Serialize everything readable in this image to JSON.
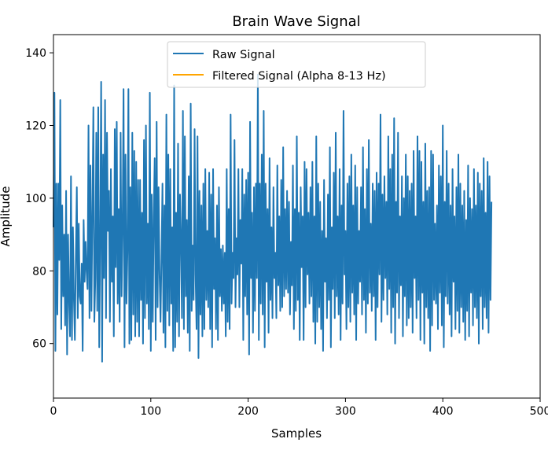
{
  "chart_data": {
    "type": "line",
    "title": "Brain Wave Signal",
    "xlabel": "Samples",
    "ylabel": "Amplitude",
    "xlim": [
      0,
      500
    ],
    "ylim": [
      45,
      145
    ],
    "xticks": [
      0,
      100,
      200,
      300,
      400,
      500
    ],
    "yticks": [
      60,
      80,
      100,
      120,
      140
    ],
    "grid": false,
    "legend_position": "upper center",
    "series": [
      {
        "name": "Raw Signal",
        "color": "#1f77b4",
        "x_start": 0,
        "x_step": 1,
        "values": [
          92,
          129,
          58,
          104,
          68,
          104,
          83,
          127,
          64,
          98,
          73,
          90,
          65,
          102,
          57,
          90,
          72,
          62,
          106,
          61,
          92,
          72,
          61,
          84,
          103,
          67,
          93,
          73,
          71,
          82,
          58,
          94,
          77,
          88,
          80,
          75,
          120,
          67,
          109,
          69,
          96,
          125,
          66,
          78,
          118,
          69,
          125,
          59,
          87,
          132,
          55,
          112,
          78,
          127,
          67,
          118,
          91,
          102,
          66,
          108,
          77,
          95,
          62,
          119,
          81,
          121,
          71,
          97,
          66,
          118,
          73,
          91,
          130,
          59,
          112,
          71,
          85,
          130,
          60,
          103,
          61,
          118,
          68,
          113,
          62,
          110,
          66,
          105,
          62,
          105,
          72,
          96,
          60,
          116,
          67,
          120,
          71,
          93,
          64,
          129,
          58,
          101,
          66,
          95,
          111,
          61,
          121,
          70,
          103,
          79,
          66,
          84,
          104,
          63,
          98,
          59,
          123,
          69,
          112,
          65,
          108,
          71,
          92,
          58,
          131,
          59,
          96,
          66,
          115,
          62,
          101,
          89,
          67,
          124,
          64,
          117,
          73,
          94,
          63,
          106,
          58,
          126,
          69,
          87,
          72,
          119,
          79,
          64,
          117,
          56,
          102,
          68,
          98,
          62,
          104,
          64,
          108,
          72,
          91,
          70,
          107,
          64,
          101,
          59,
          108,
          75,
          89,
          64,
          98,
          61,
          103,
          73,
          86,
          69,
          87,
          71,
          85,
          62,
          108,
          66,
          97,
          64,
          123,
          71,
          85,
          78,
          116,
          70,
          89,
          79,
          108,
          70,
          94,
          82,
          108,
          61,
          101,
          73,
          105,
          68,
          107,
          57,
          121,
          78,
          96,
          63,
          103,
          69,
          104,
          78,
          134,
          61,
          104,
          71,
          112,
          68,
          124,
          59,
          104,
          77,
          97,
          63,
          111,
          72,
          92,
          67,
          103,
          78,
          85,
          67,
          109,
          76,
          95,
          69,
          105,
          70,
          114,
          73,
          97,
          75,
          102,
          74,
          99,
          68,
          88,
          76,
          109,
          64,
          97,
          69,
          117,
          72,
          96,
          61,
          103,
          81,
          95,
          61,
          110,
          70,
          108,
          79,
          96,
          71,
          103,
          73,
          110,
          66,
          95,
          60,
          117,
          66,
          104,
          70,
          99,
          64,
          91,
          58,
          105,
          77,
          89,
          67,
          101,
          72,
          114,
          59,
          92,
          75,
          107,
          67,
          118,
          73,
          95,
          68,
          108,
          61,
          98,
          71,
          124,
          79,
          91,
          64,
          104,
          70,
          106,
          66,
          112,
          74,
          98,
          68,
          109,
          61,
          103,
          71,
          91,
          77,
          103,
          68,
          114,
          72,
          97,
          63,
          108,
          71,
          116,
          74,
          93,
          69,
          104,
          73,
          102,
          61,
          107,
          70,
          104,
          79,
          123,
          66,
          101,
          72,
          106,
          78,
          99,
          68,
          117,
          75,
          108,
          63,
          112,
          70,
          122,
          60,
          99,
          74,
          118,
          67,
          95,
          76,
          106,
          62,
          100,
          73,
          112,
          65,
          106,
          67,
          102,
          70,
          104,
          63,
          113,
          78,
          95,
          67,
          117,
          72,
          113,
          61,
          110,
          74,
          99,
          60,
          115,
          70,
          102,
          67,
          103,
          58,
          113,
          65,
          112,
          72,
          93,
          71,
          98,
          64,
          109,
          74,
          106,
          65,
          120,
          59,
          99,
          73,
          113,
          71,
          104,
          68,
          98,
          62,
          108,
          77,
          95,
          64,
          103,
          69,
          112,
          63,
          104,
          70,
          98,
          66,
          102,
          61,
          94,
          69,
          109,
          62,
          100,
          74,
          97,
          65,
          108,
          70,
          98,
          67,
          107,
          60,
          104,
          73,
          102,
          64,
          111,
          70,
          96,
          67,
          110,
          63,
          106,
          72,
          99
        ]
      },
      {
        "name": "Filtered Signal (Alpha 8-13 Hz)",
        "color": "#ffa500",
        "values": []
      }
    ]
  }
}
